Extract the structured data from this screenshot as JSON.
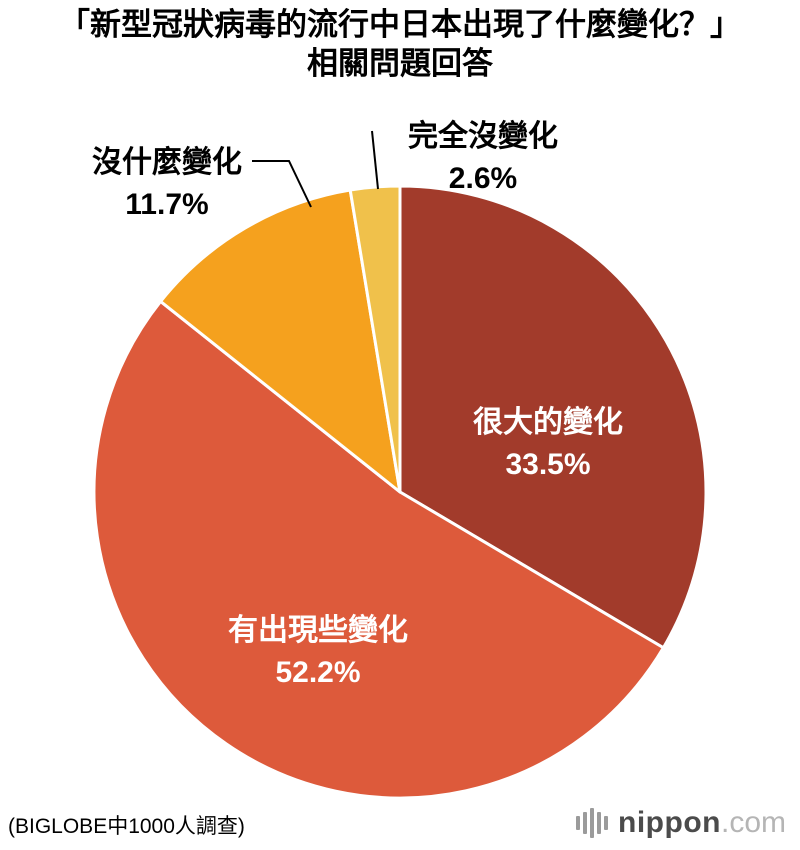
{
  "title_lines": [
    "「新型冠狀病毒的流行中日本出現了什麼變化？」",
    "相關問題回答"
  ],
  "footer": {
    "source_note": "(BIGLOBE中1000人調查)",
    "logo_name": "nippon",
    "logo_tld": ".com"
  },
  "chart_data": {
    "type": "pie",
    "title": "「新型冠狀病毒的流行中日本出現了什麼變化？」相關問題回答",
    "start_angle_deg": 0,
    "direction": "clockwise",
    "total": 100,
    "legend": "none",
    "label_text_color_inside": "#ffffff",
    "label_text_color_outside": "#000000",
    "slice_divider_color": "#ffffff",
    "slices": [
      {
        "label": "很大的變化",
        "value": 33.5,
        "pct": "33.5%",
        "color": "#a23b2b",
        "label_position": "inside"
      },
      {
        "label": "有出現些變化",
        "value": 52.2,
        "pct": "52.2%",
        "color": "#dd5a3b",
        "label_position": "inside"
      },
      {
        "label": "沒什麼變化",
        "value": 11.7,
        "pct": "11.7%",
        "color": "#f5a11e",
        "label_position": "outside-left"
      },
      {
        "label": "完全沒變化",
        "value": 2.6,
        "pct": "2.6%",
        "color": "#f0c14b",
        "label_position": "outside-top"
      }
    ],
    "source_note": "(BIGLOBE中1000人調查)"
  }
}
